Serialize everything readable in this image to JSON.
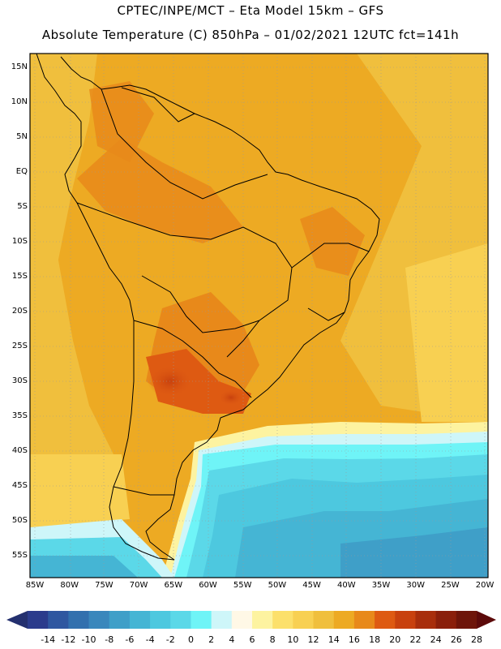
{
  "header": {
    "title_line1": "CPTEC/INPE/MCT –  Eta Model 15km – GFS",
    "title_line2": "Absolute Temperature (C) 850hPa – 01/02/2021 12UTC fct=141h"
  },
  "map": {
    "lat_labels": [
      "15N",
      "10N",
      "5N",
      "EQ",
      "5S",
      "10S",
      "15S",
      "20S",
      "25S",
      "30S",
      "35S",
      "40S",
      "45S",
      "50S",
      "55S"
    ],
    "lon_labels": [
      "85W",
      "80W",
      "75W",
      "70W",
      "65W",
      "60W",
      "55W",
      "50W",
      "45W",
      "40W",
      "35W",
      "30W",
      "25W",
      "20W"
    ]
  },
  "legend": {
    "labels": [
      "-14",
      "-12",
      "-10",
      "-8",
      "-6",
      "-4",
      "-2",
      "0",
      "2",
      "4",
      "6",
      "8",
      "10",
      "12",
      "14",
      "16",
      "18",
      "20",
      "22",
      "24",
      "26",
      "28"
    ],
    "colors": [
      "#2b3b8c",
      "#2f57a0",
      "#3270ae",
      "#3a87bc",
      "#3f9fc8",
      "#45b5d4",
      "#4dc8df",
      "#5bd8e8",
      "#6ff4f7",
      "#cef6f9",
      "#fff8e6",
      "#fdf3a0",
      "#fce06b",
      "#f8d052",
      "#f0bf3d",
      "#edaa23",
      "#e8891a",
      "#de5a12",
      "#c8410e",
      "#a82e0c",
      "#8a1f0b",
      "#6e150a"
    ]
  }
}
